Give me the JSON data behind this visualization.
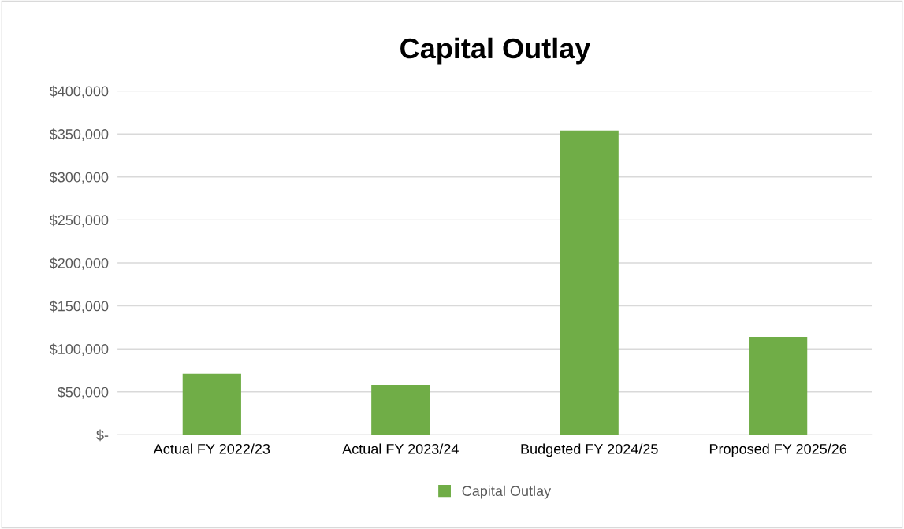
{
  "chart_data": {
    "type": "bar",
    "title": "Capital Outlay",
    "categories": [
      "Actual FY 2022/23",
      "Actual FY 2023/24",
      "Budgeted FY 2024/25",
      "Proposed FY 2025/26"
    ],
    "series": [
      {
        "name": "Capital Outlay",
        "color": "#70ad47",
        "values": [
          71000,
          58000,
          354000,
          114000
        ]
      }
    ],
    "ylim": [
      0,
      400000
    ],
    "yticks": [
      {
        "value": 0,
        "label": "$-"
      },
      {
        "value": 50000,
        "label": "$50,000"
      },
      {
        "value": 100000,
        "label": "$100,000"
      },
      {
        "value": 150000,
        "label": "$150,000"
      },
      {
        "value": 200000,
        "label": "$200,000"
      },
      {
        "value": 250000,
        "label": "$250,000"
      },
      {
        "value": 300000,
        "label": "$300,000"
      },
      {
        "value": 350000,
        "label": "$350,000"
      },
      {
        "value": 400000,
        "label": "$400,000"
      }
    ],
    "grid": "y",
    "legend": "bottom"
  }
}
